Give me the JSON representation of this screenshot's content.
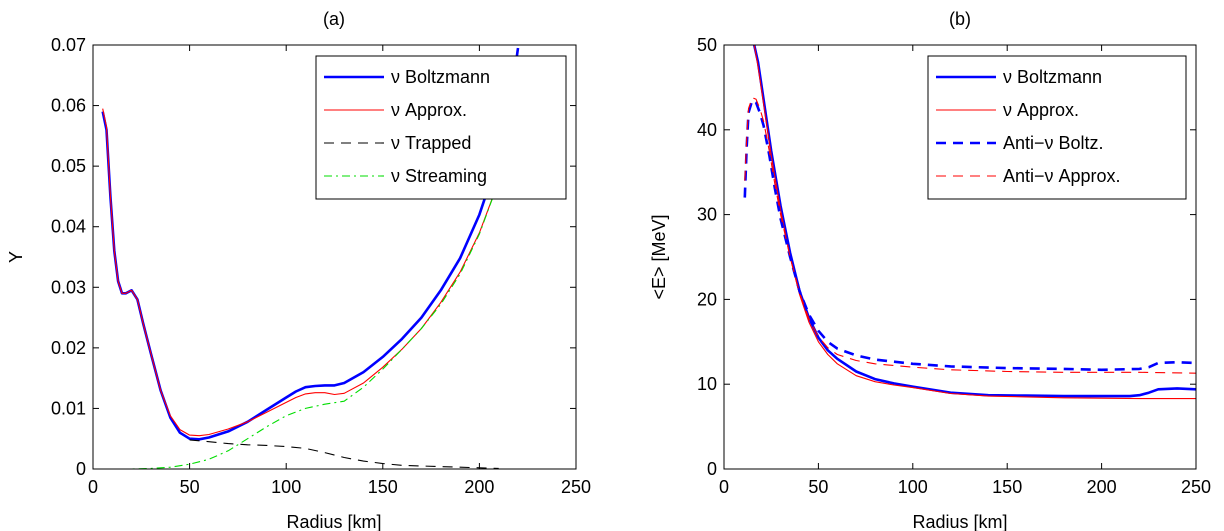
{
  "chart_data": [
    {
      "type": "line",
      "title": "(a)",
      "xlabel": "Radius [km]",
      "ylabel": "Y",
      "xlim": [
        0,
        250
      ],
      "ylim": [
        0,
        0.07
      ],
      "xticks": [
        0,
        50,
        100,
        150,
        200,
        250
      ],
      "xtick_labels": [
        "0",
        "50",
        "100",
        "150",
        "200",
        "250"
      ],
      "yticks": [
        0,
        0.01,
        0.02,
        0.03,
        0.04,
        0.05,
        0.06,
        0.07
      ],
      "ytick_labels": [
        "0",
        "0.01",
        "0.02",
        "0.03",
        "0.04",
        "0.05",
        "0.06",
        "0.07"
      ],
      "grid": false,
      "legend_position": "top-right",
      "series": [
        {
          "name": "ν Boltzmann",
          "color": "#0000ff",
          "dash": "solid",
          "width": "thick",
          "x": [
            5,
            7,
            9,
            11,
            13,
            15,
            17,
            20,
            23,
            26,
            30,
            35,
            40,
            45,
            50,
            55,
            60,
            70,
            80,
            90,
            100,
            105,
            110,
            115,
            120,
            125,
            130,
            140,
            150,
            160,
            170,
            180,
            190,
            200,
            210,
            215,
            220
          ],
          "y": [
            0.059,
            0.056,
            0.045,
            0.036,
            0.031,
            0.029,
            0.029,
            0.0295,
            0.028,
            0.024,
            0.019,
            0.013,
            0.0085,
            0.006,
            0.005,
            0.0049,
            0.0052,
            0.0062,
            0.0078,
            0.0098,
            0.0118,
            0.0128,
            0.0135,
            0.0137,
            0.0138,
            0.0138,
            0.0142,
            0.016,
            0.0185,
            0.0215,
            0.025,
            0.0295,
            0.0348,
            0.042,
            0.0515,
            0.058,
            0.0695
          ]
        },
        {
          "name": "ν Approx.",
          "color": "#ff0000",
          "dash": "solid",
          "width": "thin",
          "x": [
            5,
            7,
            9,
            11,
            13,
            15,
            17,
            20,
            23,
            26,
            30,
            35,
            40,
            45,
            50,
            55,
            60,
            70,
            80,
            90,
            100,
            105,
            110,
            115,
            120,
            125,
            130,
            140,
            150,
            160,
            170,
            180,
            190,
            200,
            210,
            213
          ],
          "y": [
            0.0595,
            0.0565,
            0.045,
            0.036,
            0.031,
            0.029,
            0.029,
            0.0295,
            0.028,
            0.024,
            0.019,
            0.013,
            0.0088,
            0.0065,
            0.0056,
            0.0055,
            0.0057,
            0.0066,
            0.0078,
            0.0094,
            0.011,
            0.0118,
            0.0124,
            0.0126,
            0.0126,
            0.0123,
            0.0125,
            0.0142,
            0.0168,
            0.0198,
            0.0232,
            0.0275,
            0.0325,
            0.039,
            0.0475,
            0.05
          ]
        },
        {
          "name": "ν Trapped",
          "color": "#000000",
          "dash": "dashed",
          "width": "thin",
          "x": [
            50,
            60,
            70,
            80,
            90,
            100,
            110,
            120,
            130,
            140,
            150,
            160,
            170,
            180,
            190,
            200,
            210
          ],
          "y": [
            0.0048,
            0.0045,
            0.0042,
            0.004,
            0.0039,
            0.0037,
            0.0034,
            0.0027,
            0.0019,
            0.0013,
            0.0009,
            0.0006,
            0.0005,
            0.0004,
            0.0003,
            0.0002,
            0.0001
          ]
        },
        {
          "name": "ν Streaming",
          "color": "#00dd00",
          "dash": "dashdot",
          "width": "thin",
          "x": [
            5,
            20,
            30,
            40,
            50,
            60,
            70,
            80,
            90,
            100,
            110,
            120,
            130,
            140,
            150,
            160,
            170,
            180,
            190,
            200,
            210,
            213
          ],
          "y": [
            0,
            0,
            0.0001,
            0.0003,
            0.0008,
            0.0016,
            0.003,
            0.005,
            0.007,
            0.0088,
            0.01,
            0.0107,
            0.0112,
            0.0135,
            0.0165,
            0.0198,
            0.0232,
            0.0272,
            0.0322,
            0.0388,
            0.0475,
            0.05
          ]
        }
      ]
    },
    {
      "type": "line",
      "title": "(b)",
      "xlabel": "Radius [km]",
      "ylabel": "<E> [MeV]",
      "xlim": [
        0,
        250
      ],
      "ylim": [
        0,
        50
      ],
      "xticks": [
        0,
        50,
        100,
        150,
        200,
        250
      ],
      "xtick_labels": [
        "0",
        "50",
        "100",
        "150",
        "200",
        "250"
      ],
      "yticks": [
        0,
        10,
        20,
        30,
        40,
        50
      ],
      "ytick_labels": [
        "0",
        "10",
        "20",
        "30",
        "40",
        "50"
      ],
      "grid": false,
      "legend_position": "top-right",
      "series": [
        {
          "name": "ν Boltzmann",
          "color": "#0000ff",
          "dash": "solid",
          "width": "thick",
          "x": [
            16,
            18,
            20,
            25,
            30,
            35,
            40,
            45,
            50,
            55,
            60,
            70,
            80,
            90,
            100,
            120,
            140,
            160,
            180,
            200,
            215,
            220,
            225,
            230,
            240,
            250
          ],
          "y": [
            50,
            48,
            45,
            37.5,
            31,
            25.5,
            21,
            17.8,
            15.5,
            14,
            13,
            11.5,
            10.6,
            10.1,
            9.7,
            9.0,
            8.7,
            8.65,
            8.6,
            8.6,
            8.6,
            8.7,
            9.0,
            9.4,
            9.5,
            9.4
          ]
        },
        {
          "name": "ν Approx.",
          "color": "#ff0000",
          "dash": "solid",
          "width": "thin",
          "x": [
            16,
            18,
            20,
            25,
            30,
            35,
            40,
            45,
            50,
            55,
            60,
            70,
            80,
            90,
            100,
            120,
            140,
            160,
            180,
            200,
            220,
            250
          ],
          "y": [
            50,
            47.5,
            44.5,
            37,
            30.5,
            25,
            20.6,
            17.3,
            15,
            13.5,
            12.4,
            11,
            10.3,
            9.9,
            9.6,
            8.9,
            8.6,
            8.5,
            8.4,
            8.35,
            8.3,
            8.3
          ]
        },
        {
          "name": "Anti−ν Boltz.",
          "color": "#0000ff",
          "dash": "dashed",
          "width": "thick",
          "x": [
            11,
            12,
            13,
            15,
            17,
            19,
            21,
            24,
            27,
            30,
            35,
            40,
            45,
            50,
            55,
            60,
            70,
            80,
            100,
            120,
            150,
            180,
            200,
            220,
            225,
            230,
            240,
            250
          ],
          "y": [
            32,
            38,
            42,
            43.5,
            43.2,
            42,
            40.5,
            37,
            33,
            29.5,
            25,
            21,
            18.2,
            16.3,
            15,
            14.2,
            13.4,
            12.9,
            12.4,
            12.1,
            11.9,
            11.8,
            11.7,
            11.8,
            12.0,
            12.5,
            12.6,
            12.5
          ]
        },
        {
          "name": "Anti−ν Approx.",
          "color": "#ff0000",
          "dash": "dashed",
          "width": "thin",
          "x": [
            11,
            12,
            13,
            15,
            17,
            19,
            21,
            24,
            27,
            30,
            35,
            40,
            45,
            50,
            55,
            60,
            70,
            80,
            100,
            120,
            150,
            180,
            200,
            220,
            250
          ],
          "y": [
            34,
            39,
            42.5,
            43.8,
            43.6,
            42.5,
            41,
            37.5,
            33.5,
            30,
            25,
            20.8,
            17.7,
            15.6,
            14.3,
            13.5,
            12.8,
            12.4,
            12.0,
            11.7,
            11.5,
            11.4,
            11.4,
            11.4,
            11.3
          ]
        }
      ]
    }
  ]
}
